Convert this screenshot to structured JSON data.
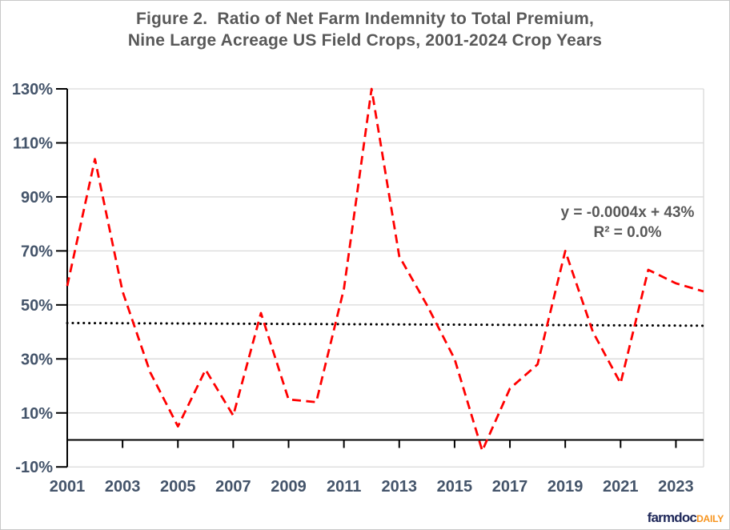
{
  "title": {
    "line1": "Figure 2.  Ratio of Net Farm Indemnity to Total Premium,",
    "line2": "Nine Large Acreage US Field Crops, 2001-2024 Crop Years"
  },
  "annotation": {
    "equation": "y = -0.0004x + 43%",
    "r_squared": "R² = 0.0%"
  },
  "logo": {
    "farmdoc": "farmdoc",
    "daily": "DAILY",
    "farmdoc_color": "#20295a",
    "daily_color": "#f7941e"
  },
  "colors": {
    "series": "#ff0000",
    "trend": "#000000",
    "grid": "#d9d9d9",
    "axis": "#000000",
    "tick_label": "#44546a",
    "title_text": "#595959"
  },
  "chart_data": {
    "type": "line",
    "title": "Figure 2. Ratio of Net Farm Indemnity to Total Premium, Nine Large Acreage US Field Crops, 2001-2024 Crop Years",
    "xlabel": "",
    "ylabel": "",
    "x": [
      2001,
      2002,
      2003,
      2004,
      2005,
      2006,
      2007,
      2008,
      2009,
      2010,
      2011,
      2012,
      2013,
      2014,
      2015,
      2016,
      2017,
      2018,
      2019,
      2020,
      2021,
      2022,
      2023,
      2024
    ],
    "series": [
      {
        "name": "Ratio of Net Farm Indemnity to Total Premium (%)",
        "style": "dashed",
        "color": "#ff0000",
        "values": [
          57,
          104,
          55,
          25,
          5,
          26,
          9,
          47,
          15,
          14,
          56,
          130,
          68,
          50,
          30,
          -4,
          19,
          28,
          70,
          40,
          21,
          63,
          58,
          55
        ]
      }
    ],
    "trendline": {
      "name": "Linear trend",
      "style": "dotted",
      "color": "#000000",
      "start_value": 43.3,
      "end_value": 42.3
    },
    "ylim": [
      -10,
      130
    ],
    "ytick_step": 20,
    "ytick_labels": [
      "-10%",
      "10%",
      "30%",
      "50%",
      "70%",
      "90%",
      "110%",
      "130%"
    ],
    "xticks_labeled": [
      2001,
      2003,
      2005,
      2007,
      2009,
      2011,
      2013,
      2015,
      2017,
      2019,
      2021,
      2023
    ],
    "grid": true,
    "legend": "none"
  }
}
